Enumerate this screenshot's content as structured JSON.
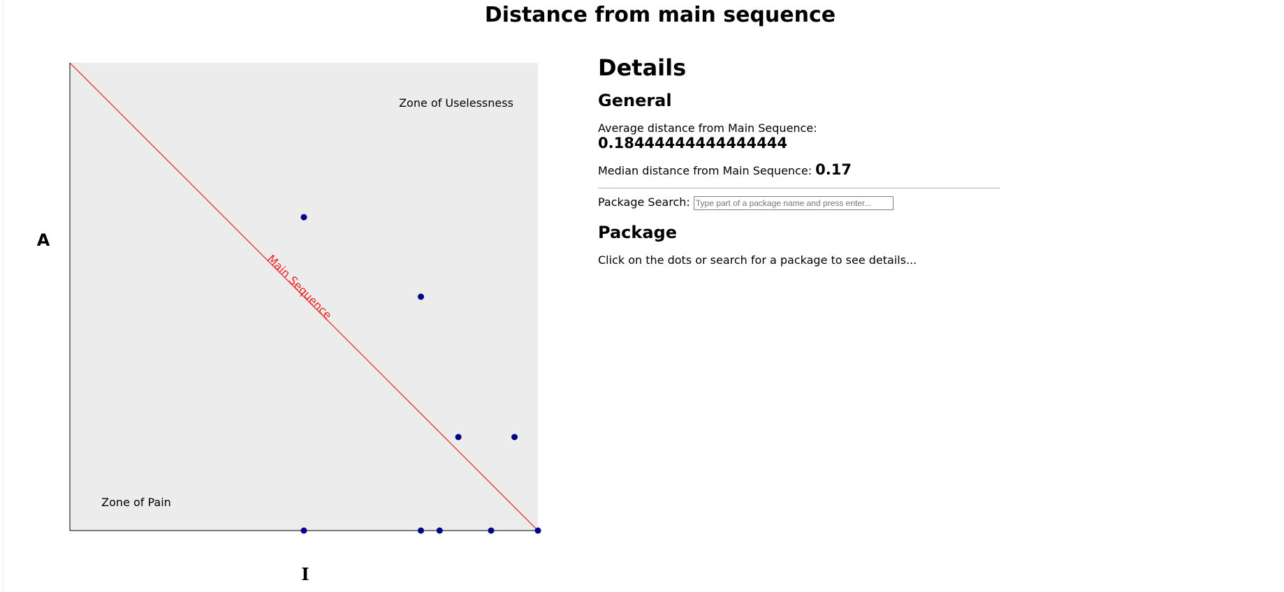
{
  "page": {
    "title": "Distance from main sequence"
  },
  "details": {
    "heading": "Details",
    "general_heading": "General",
    "avg_label": "Average distance from Main Sequence:",
    "avg_value": "0.18444444444444444",
    "median_label": "Median distance from Main Sequence:",
    "median_value": "0.17",
    "search_label": "Package Search:",
    "search_placeholder": "Type part of a package name and press enter...",
    "package_heading": "Package",
    "package_hint": "Click on the dots or search for a package to see details..."
  },
  "chart_data": {
    "type": "scatter",
    "xlabel": "I",
    "ylabel": "A",
    "xlim": [
      0,
      1
    ],
    "ylim": [
      0,
      1
    ],
    "zone_top_label": "Zone of Uselessness",
    "zone_bottom_label": "Zone of Pain",
    "main_sequence_label": "Main Sequence",
    "main_sequence_color": "#ee2222",
    "point_color": "#00008b",
    "plot_background": "#ececec",
    "points": [
      {
        "x": 0.5,
        "y": 0.67
      },
      {
        "x": 0.75,
        "y": 0.5
      },
      {
        "x": 0.83,
        "y": 0.2
      },
      {
        "x": 0.95,
        "y": 0.2
      },
      {
        "x": 0.5,
        "y": 0.0
      },
      {
        "x": 0.75,
        "y": 0.0
      },
      {
        "x": 0.79,
        "y": 0.0
      },
      {
        "x": 0.9,
        "y": 0.0
      },
      {
        "x": 1.0,
        "y": 0.0
      }
    ]
  }
}
